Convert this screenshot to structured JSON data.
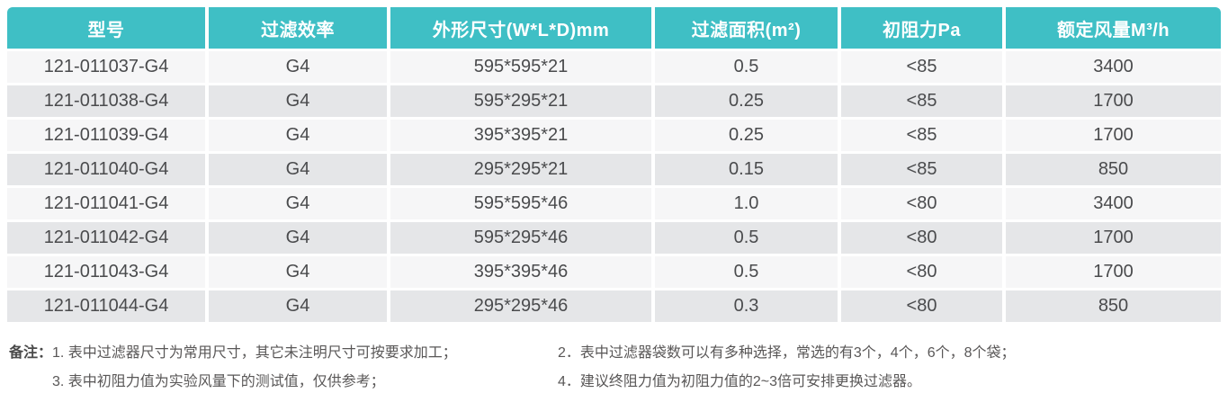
{
  "table": {
    "headers": [
      "型号",
      "过滤效率",
      "外形尺寸(W*L*D)mm",
      "过滤面积(m²)",
      "初阻力Pa",
      "额定风量M³/h"
    ],
    "rows": [
      [
        "121-011037-G4",
        "G4",
        "595*595*21",
        "0.5",
        "<85",
        "3400"
      ],
      [
        "121-011038-G4",
        "G4",
        "595*295*21",
        "0.25",
        "<85",
        "1700"
      ],
      [
        "121-011039-G4",
        "G4",
        "395*395*21",
        "0.25",
        "<85",
        "1700"
      ],
      [
        "121-011040-G4",
        "G4",
        "295*295*21",
        "0.15",
        "<85",
        "850"
      ],
      [
        "121-011041-G4",
        "G4",
        "595*595*46",
        "1.0",
        "<80",
        "3400"
      ],
      [
        "121-011042-G4",
        "G4",
        "595*295*46",
        "0.5",
        "<80",
        "1700"
      ],
      [
        "121-011043-G4",
        "G4",
        "395*395*46",
        "0.5",
        "<80",
        "1700"
      ],
      [
        "121-011044-G4",
        "G4",
        "295*295*46",
        "0.3",
        "<80",
        "850"
      ]
    ]
  },
  "notes": {
    "label": "备注：",
    "items": [
      "1. 表中过滤器尺寸为常用尺寸，其它未注明尺寸可按要求加工；",
      "2．表中过滤器袋数可以有多种选择，常选的有3个，4个，6个，8个袋；",
      "3. 表中初阻力值为实验风量下的测试值，仅供参考；",
      "4．建议终阻力值为初阻力值的2~3倍可安排更换过滤器。"
    ]
  },
  "colors": {
    "header_bg": "#3FBFC5",
    "header_text": "#ffffff",
    "row_odd_bg": "#f6f6f7",
    "row_even_bg": "#e5e6e8",
    "cell_text": "#4A4B4D",
    "note_text": "#595757"
  }
}
